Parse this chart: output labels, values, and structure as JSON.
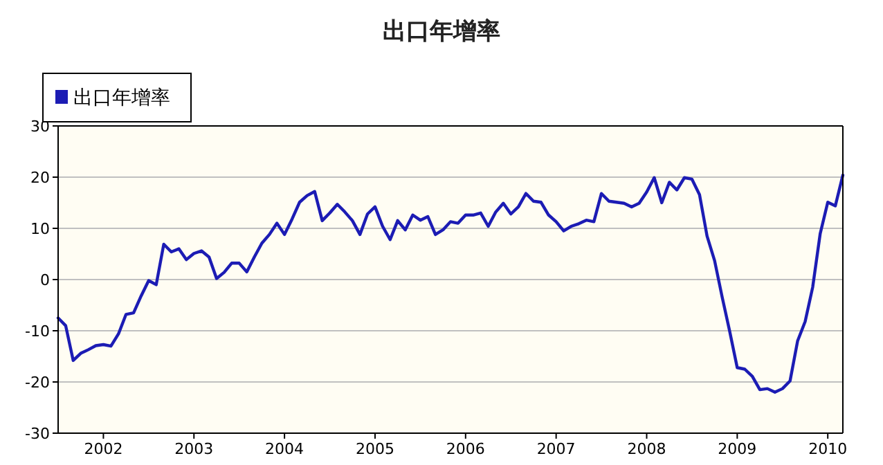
{
  "chart_data": {
    "type": "line",
    "title": "出口年增率",
    "legend": "top left",
    "grid": "y",
    "x": [
      "2001-07",
      "2001-08",
      "2001-09",
      "2001-10",
      "2001-11",
      "2001-12",
      "2002-01",
      "2002-02",
      "2002-03",
      "2002-04",
      "2002-05",
      "2002-06",
      "2002-07",
      "2002-08",
      "2002-09",
      "2002-10",
      "2002-11",
      "2002-12",
      "2003-01",
      "2003-02",
      "2003-03",
      "2003-04",
      "2003-05",
      "2003-06",
      "2003-07",
      "2003-08",
      "2003-09",
      "2003-10",
      "2003-11",
      "2003-12",
      "2004-01",
      "2004-02",
      "2004-03",
      "2004-04",
      "2004-05",
      "2004-06",
      "2004-07",
      "2004-08",
      "2004-09",
      "2004-10",
      "2004-11",
      "2004-12",
      "2005-01",
      "2005-02",
      "2005-03",
      "2005-04",
      "2005-05",
      "2005-06",
      "2005-07",
      "2005-08",
      "2005-09",
      "2005-10",
      "2005-11",
      "2005-12",
      "2006-01",
      "2006-02",
      "2006-03",
      "2006-04",
      "2006-05",
      "2006-06",
      "2006-07",
      "2006-08",
      "2006-09",
      "2006-10",
      "2006-11",
      "2006-12",
      "2007-01",
      "2007-02",
      "2007-03",
      "2007-04",
      "2007-05",
      "2007-06",
      "2007-07",
      "2007-08",
      "2007-09",
      "2007-10",
      "2007-11",
      "2007-12",
      "2008-01",
      "2008-02",
      "2008-03",
      "2008-04",
      "2008-05",
      "2008-06",
      "2008-07",
      "2008-08",
      "2008-09",
      "2008-10",
      "2008-11",
      "2008-12",
      "2009-01",
      "2009-02",
      "2009-03",
      "2009-04",
      "2009-05",
      "2009-06",
      "2009-07",
      "2009-08",
      "2009-09",
      "2009-10",
      "2009-11",
      "2009-12",
      "2010-01",
      "2010-02",
      "2010-03"
    ],
    "series": [
      {
        "name": "出口年增率",
        "color": "#1c1cb4",
        "values": [
          -7.5,
          -9,
          -15.8,
          -14.4,
          -13.7,
          -12.9,
          -12.7,
          -13,
          -10.6,
          -6.8,
          -6.5,
          -3.2,
          -0.2,
          -1,
          6.9,
          5.4,
          6,
          3.9,
          5.1,
          5.6,
          4.4,
          0.2,
          1.4,
          3.2,
          3.2,
          1.5,
          4.4,
          7.1,
          8.8,
          11,
          8.8,
          11.8,
          15.1,
          16.4,
          17.2,
          11.5,
          13,
          14.7,
          13.2,
          11.5,
          8.8,
          12.8,
          14.2,
          10.4,
          7.8,
          11.5,
          9.7,
          12.6,
          11.6,
          12.3,
          8.8,
          9.7,
          11.3,
          11,
          12.6,
          12.6,
          13,
          10.4,
          13.2,
          14.9,
          12.8,
          14.2,
          16.8,
          15.3,
          15.1,
          12.6,
          11.3,
          9.5,
          10.4,
          10.9,
          11.6,
          11.3,
          16.8,
          15.3,
          15.1,
          14.9,
          14.2,
          14.9,
          17.1,
          19.9,
          15,
          19,
          17.5,
          19.9,
          19.6,
          16.6,
          8.5,
          3.7,
          -3.4,
          -10.1,
          -17.2,
          -17.5,
          -18.9,
          -21.5,
          -21.3,
          -22,
          -21.3,
          -19.8,
          -12,
          -8.2,
          -1.5,
          9,
          15.1,
          14.4,
          20.4
        ]
      }
    ],
    "xlim": [
      "2001-07",
      "2010-03"
    ],
    "xticks": [
      "2002",
      "2003",
      "2004",
      "2005",
      "2006",
      "2007",
      "2008",
      "2009",
      "2010"
    ],
    "ylim": [
      -30,
      30
    ],
    "yticks": [
      -30,
      -20,
      -10,
      0,
      10,
      20,
      30
    ]
  }
}
